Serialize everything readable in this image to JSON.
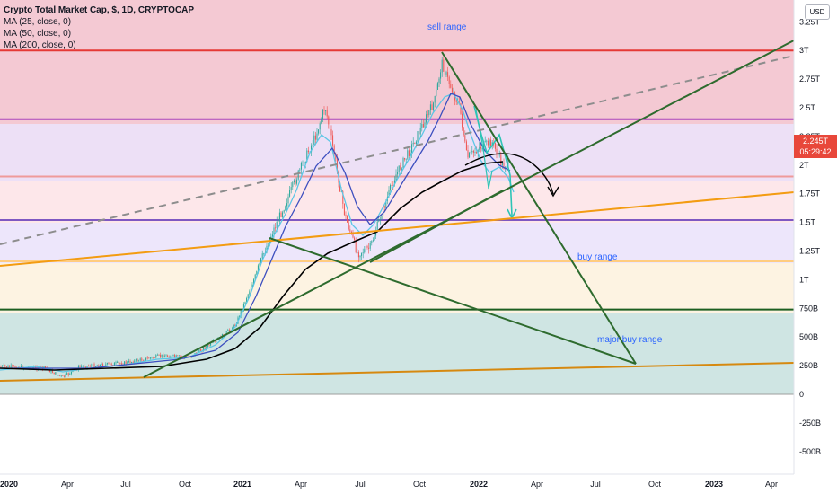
{
  "legend": {
    "title": "Crypto Total Market Cap, $, 1D, CRYPTOCAP",
    "ma": [
      "MA (25, close, 0)",
      "MA (50, close, 0)",
      "MA (200, close, 0)"
    ]
  },
  "currency_button": "USD",
  "price_tag": {
    "value": "2.245T",
    "countdown": "05:29:42",
    "color": "#e8473a"
  },
  "colors": {
    "sell_zone": "#f4c9d3",
    "upper_purple": "#ede0f6",
    "pink": "#fde7ea",
    "lavender": "#ede6fb",
    "buy_zone": "#fdf3e2",
    "major_buy_zone": "#cfe5e3",
    "price_up": "#26a69a",
    "price_down": "#ef5350",
    "ma25": "#5cc6e6",
    "ma50": "#3d4fbf",
    "ma200": "#000000",
    "trendline": "#2e6b2e",
    "orange_line": "#f39c12",
    "annotation": "#2962ff"
  },
  "chart_data": {
    "type": "line",
    "title": "Crypto Total Market Cap, $, 1D, CRYPTOCAP",
    "ylabel": "USD",
    "ylim": [
      -0.55,
      3.3
    ],
    "y_ticks": [
      "3.25T",
      "3T",
      "2.75T",
      "2.5T",
      "2.25T",
      "2T",
      "1.75T",
      "1.5T",
      "1.25T",
      "1T",
      "750B",
      "500B",
      "250B",
      "0",
      "-250B",
      "-500B"
    ],
    "x_ticks": [
      "2020",
      "Apr",
      "Jul",
      "Oct",
      "2021",
      "Apr",
      "Jul",
      "Oct",
      "2022",
      "Apr",
      "Jul",
      "Oct",
      "2023",
      "Apr"
    ],
    "horizontal_levels": [
      {
        "value": 3.0,
        "color": "#e53935"
      },
      {
        "value": 2.4,
        "color": "#ab47bc"
      },
      {
        "value": 1.9,
        "color": "#ef9a9a"
      },
      {
        "value": 1.52,
        "color": "#7e57c2"
      },
      {
        "value": 1.16,
        "color": "#ffcc80"
      },
      {
        "value": 0.74,
        "color": "#1b5e20"
      }
    ],
    "zone_labels": [
      "sell range",
      "buy range",
      "major buy range"
    ],
    "series": [
      {
        "name": "MA (25, close, 0)",
        "x": [
          "2020-01",
          "2020-04",
          "2020-07",
          "2020-10",
          "2021-01",
          "2021-04",
          "2021-07",
          "2021-10",
          "2021-11",
          "2022-01"
        ],
        "values": [
          0.22,
          0.18,
          0.27,
          0.35,
          0.78,
          1.98,
          1.22,
          2.2,
          2.62,
          2.05
        ]
      },
      {
        "name": "MA (50, close, 0)",
        "x": [
          "2020-01",
          "2020-04",
          "2020-07",
          "2020-10",
          "2021-01",
          "2021-04",
          "2021-07",
          "2021-10",
          "2021-11",
          "2022-01"
        ],
        "values": [
          0.21,
          0.2,
          0.26,
          0.34,
          0.62,
          1.85,
          1.45,
          2.05,
          2.55,
          2.15
        ]
      },
      {
        "name": "MA (200, close, 0)",
        "x": [
          "2020-01",
          "2020-04",
          "2020-07",
          "2020-10",
          "2021-01",
          "2021-04",
          "2021-07",
          "2021-10",
          "2022-01",
          "2022-03"
        ],
        "values": [
          0.22,
          0.22,
          0.24,
          0.3,
          0.45,
          1.05,
          1.38,
          1.75,
          2.05,
          2.12
        ]
      }
    ]
  }
}
